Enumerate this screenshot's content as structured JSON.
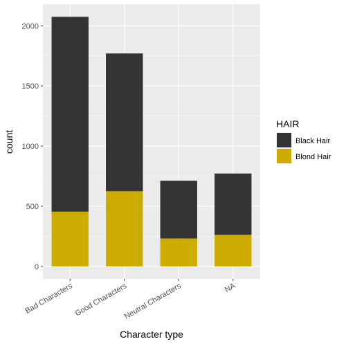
{
  "chart_data": {
    "type": "bar",
    "stacked": true,
    "categories": [
      "Bad Characters",
      "Good Characters",
      "Neutral Characters",
      "NA"
    ],
    "series": [
      {
        "name": "Black Hair",
        "values": [
          1620,
          1145,
          480,
          510
        ],
        "color": "#333333"
      },
      {
        "name": "Blond Hair",
        "values": [
          455,
          625,
          232,
          262
        ],
        "color": "#CCAC00"
      }
    ],
    "xlabel": "Character type",
    "ylabel": "count",
    "ylim": [
      -104,
      2180
    ],
    "yticks": [
      0,
      500,
      1000,
      1500,
      2000
    ],
    "grid": true,
    "legend": {
      "title": "HAIR",
      "position": "right"
    },
    "panel_background": "#EBEBEB",
    "grid_color": "#FFFFFF"
  }
}
